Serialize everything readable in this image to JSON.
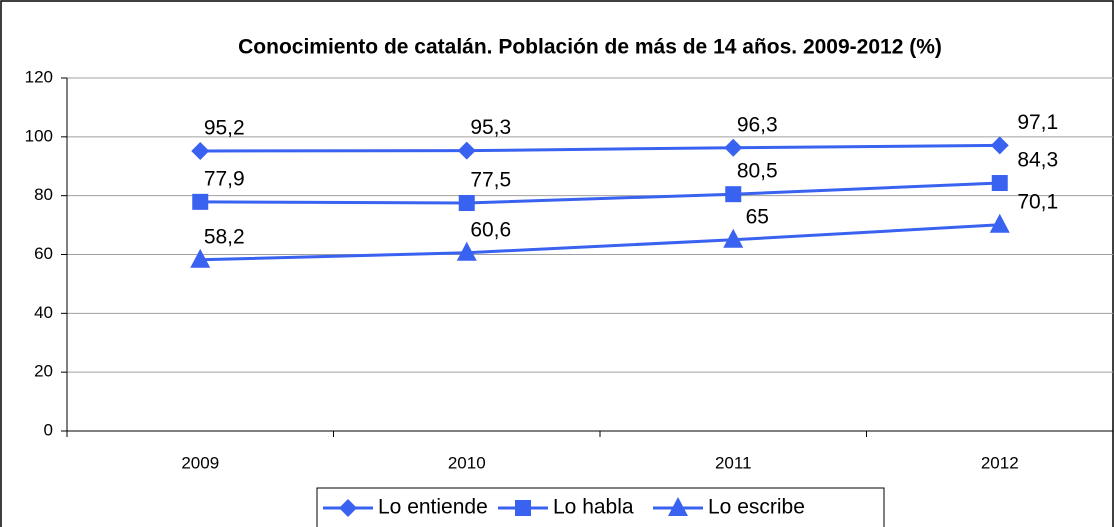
{
  "chart_data": {
    "type": "line",
    "title": "Conocimiento de catalán. Población de más de 14 años. 2009-2012 (%)",
    "categories": [
      "2009",
      "2010",
      "2011",
      "2012"
    ],
    "series": [
      {
        "name": "Lo entiende",
        "color": "#3a62f0",
        "marker": "diamond",
        "values": [
          95.2,
          95.3,
          96.3,
          97.1
        ],
        "value_labels": [
          "95,2",
          "95,3",
          "96,3",
          "97,1"
        ]
      },
      {
        "name": "Lo habla",
        "color": "#3a62f0",
        "marker": "square",
        "values": [
          77.9,
          77.5,
          80.5,
          84.3
        ],
        "value_labels": [
          "77,9",
          "77,5",
          "80,5",
          "84,3"
        ]
      },
      {
        "name": "Lo escribe",
        "color": "#3a62f0",
        "marker": "triangle",
        "values": [
          58.2,
          60.6,
          65,
          70.1
        ],
        "value_labels": [
          "58,2",
          "60,6",
          "65",
          "70,1"
        ]
      }
    ],
    "ylim": [
      0,
      120
    ],
    "yticks": [
      0,
      20,
      40,
      60,
      80,
      100,
      120
    ],
    "grid": true,
    "legend": "bottom"
  }
}
